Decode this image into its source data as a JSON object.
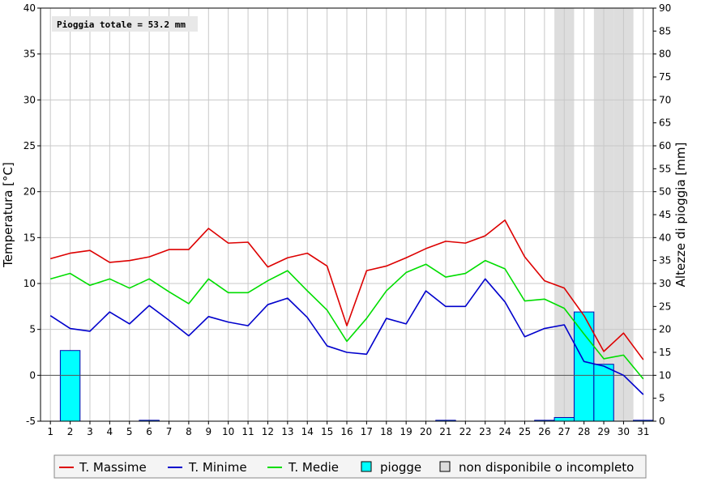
{
  "chart_data": {
    "type": "line",
    "annotation": "Pioggia totale = 53.2 mm",
    "ylabel_left": "Temperatura [°C]",
    "ylabel_right": "Altezze di pioggia [mm]",
    "ylim_left": [
      -5,
      40
    ],
    "ylim_right": [
      0,
      90
    ],
    "yticks_left": [
      -5,
      0,
      5,
      10,
      15,
      20,
      25,
      30,
      35,
      40
    ],
    "yticks_right": [
      0,
      5,
      10,
      15,
      20,
      25,
      30,
      35,
      40,
      45,
      50,
      55,
      60,
      65,
      70,
      75,
      80,
      85,
      90
    ],
    "x": [
      1,
      2,
      3,
      4,
      5,
      6,
      7,
      8,
      9,
      10,
      11,
      12,
      13,
      14,
      15,
      16,
      17,
      18,
      19,
      20,
      21,
      22,
      23,
      24,
      25,
      26,
      27,
      28,
      29,
      30,
      31
    ],
    "grid": true,
    "series": [
      {
        "name": "T. Massime",
        "color": "#dd0000",
        "axis": "left",
        "values": [
          12.7,
          13.3,
          13.6,
          12.3,
          12.5,
          12.9,
          13.7,
          13.7,
          16.0,
          14.4,
          14.5,
          11.8,
          12.8,
          13.3,
          11.9,
          5.4,
          11.4,
          11.9,
          12.8,
          13.8,
          14.6,
          14.4,
          15.2,
          16.9,
          12.9,
          10.3,
          9.5,
          6.5,
          2.6,
          4.6,
          1.7
        ]
      },
      {
        "name": "T. Minime",
        "color": "#0000cc",
        "axis": "left",
        "values": [
          6.5,
          5.1,
          4.8,
          6.9,
          5.6,
          7.6,
          6.0,
          4.3,
          6.4,
          5.8,
          5.4,
          7.7,
          8.4,
          6.3,
          3.2,
          2.5,
          2.3,
          6.2,
          5.6,
          9.2,
          7.5,
          7.5,
          10.5,
          8.0,
          4.2,
          5.1,
          5.5,
          1.5,
          1.0,
          0.0,
          -2.1
        ]
      },
      {
        "name": "T. Medie",
        "color": "#00dd00",
        "axis": "left",
        "values": [
          10.5,
          11.1,
          9.8,
          10.5,
          9.5,
          10.5,
          9.1,
          7.8,
          10.5,
          9.0,
          9.0,
          10.3,
          11.4,
          9.2,
          7.1,
          3.7,
          6.2,
          9.2,
          11.2,
          12.1,
          10.7,
          11.1,
          12.5,
          11.6,
          8.1,
          8.3,
          7.3,
          4.5,
          1.8,
          2.2,
          -0.4
        ]
      },
      {
        "name": "piogge",
        "color": "#00ffff",
        "axis": "right",
        "type": "bar",
        "values": [
          0,
          15.4,
          0,
          0,
          0,
          0.2,
          0,
          0,
          0,
          0,
          0,
          0,
          0,
          0,
          0,
          0,
          0,
          0,
          0,
          0,
          0.2,
          0,
          0,
          0,
          0,
          0.2,
          0.8,
          23.8,
          12.4,
          0,
          0.2
        ]
      }
    ],
    "unavailable_days": [
      27,
      29,
      30
    ],
    "unavailable_label": "non disponibile o incompleto",
    "unavailable_color": "#dddddd"
  }
}
